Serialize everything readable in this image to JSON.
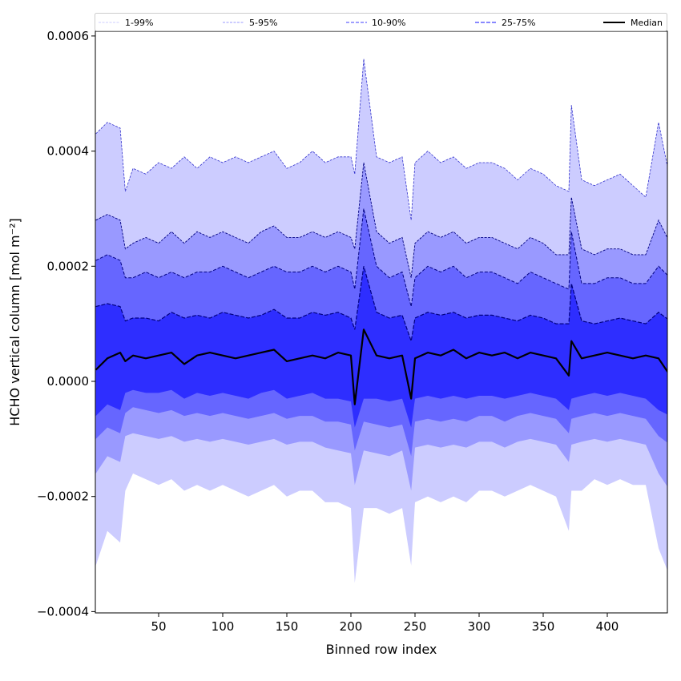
{
  "chart_data": {
    "type": "area",
    "title": "",
    "xlabel": "Binned row index",
    "ylabel": "HCHO vertical column [mol m⁻²]",
    "value_scale": 0.0001,
    "xlim": [
      1,
      449
    ],
    "ylim": [
      -0.0004,
      0.00061
    ],
    "xticks": [
      50,
      100,
      150,
      200,
      250,
      300,
      350,
      400
    ],
    "xtick_labels": [
      "50",
      "100",
      "150",
      "200",
      "250",
      "300",
      "350",
      "400"
    ],
    "yticks": [
      0.0006,
      0.0004,
      0.0002,
      0.0,
      -0.0002,
      -0.0004
    ],
    "ytick_labels": [
      "0.0006",
      "0.0004",
      "0.0002",
      "0.0000",
      "−0.0002",
      "−0.0004"
    ],
    "grid": false,
    "legend_placement": "top, above plot, 5 columns",
    "legend": [
      "1-99%",
      "5-95%",
      "10-90%",
      "25-75%",
      "Median"
    ],
    "colors": {
      "band_1_99": "#ccccff",
      "band_5_95": "#9999ff",
      "band_10_90": "#6666ff",
      "band_25_75": "#2e2eff",
      "median": "#000000",
      "edge_line": "#000080"
    },
    "x": [
      1,
      10,
      20,
      24,
      30,
      40,
      50,
      60,
      70,
      80,
      90,
      100,
      110,
      120,
      130,
      140,
      150,
      160,
      170,
      180,
      190,
      200,
      203,
      210,
      220,
      230,
      240,
      247,
      250,
      260,
      270,
      280,
      290,
      300,
      310,
      320,
      330,
      340,
      350,
      360,
      370,
      372,
      380,
      390,
      400,
      410,
      420,
      430,
      440,
      449
    ],
    "series": [
      {
        "name": "p99",
        "values": [
          4.3,
          4.5,
          4.4,
          3.3,
          3.7,
          3.6,
          3.8,
          3.7,
          3.9,
          3.7,
          3.9,
          3.8,
          3.9,
          3.8,
          3.9,
          4.0,
          3.7,
          3.8,
          4.0,
          3.8,
          3.9,
          3.9,
          3.6,
          5.6,
          3.9,
          3.8,
          3.9,
          2.8,
          3.8,
          4.0,
          3.8,
          3.9,
          3.7,
          3.8,
          3.8,
          3.7,
          3.5,
          3.7,
          3.6,
          3.4,
          3.3,
          4.8,
          3.5,
          3.4,
          3.5,
          3.6,
          3.4,
          3.2,
          4.5,
          3.5
        ]
      },
      {
        "name": "p95",
        "values": [
          2.8,
          2.9,
          2.8,
          2.3,
          2.4,
          2.5,
          2.4,
          2.6,
          2.4,
          2.6,
          2.5,
          2.6,
          2.5,
          2.4,
          2.6,
          2.7,
          2.5,
          2.5,
          2.6,
          2.5,
          2.6,
          2.5,
          2.3,
          3.8,
          2.6,
          2.4,
          2.5,
          1.8,
          2.4,
          2.6,
          2.5,
          2.6,
          2.4,
          2.5,
          2.5,
          2.4,
          2.3,
          2.5,
          2.4,
          2.2,
          2.2,
          3.2,
          2.3,
          2.2,
          2.3,
          2.3,
          2.2,
          2.2,
          2.8,
          2.4
        ]
      },
      {
        "name": "p90",
        "values": [
          2.1,
          2.2,
          2.1,
          1.8,
          1.8,
          1.9,
          1.8,
          1.9,
          1.8,
          1.9,
          1.9,
          2.0,
          1.9,
          1.8,
          1.9,
          2.0,
          1.9,
          1.9,
          2.0,
          1.9,
          2.0,
          1.9,
          1.6,
          3.0,
          2.0,
          1.8,
          1.9,
          1.3,
          1.8,
          2.0,
          1.9,
          2.0,
          1.8,
          1.9,
          1.9,
          1.8,
          1.7,
          1.9,
          1.8,
          1.7,
          1.6,
          2.6,
          1.7,
          1.7,
          1.8,
          1.8,
          1.7,
          1.7,
          2.0,
          1.8
        ]
      },
      {
        "name": "p75",
        "values": [
          1.3,
          1.35,
          1.3,
          1.05,
          1.1,
          1.1,
          1.05,
          1.2,
          1.1,
          1.15,
          1.1,
          1.2,
          1.15,
          1.1,
          1.15,
          1.25,
          1.1,
          1.1,
          1.2,
          1.15,
          1.2,
          1.1,
          0.9,
          2.0,
          1.2,
          1.1,
          1.15,
          0.7,
          1.1,
          1.2,
          1.15,
          1.2,
          1.1,
          1.15,
          1.15,
          1.1,
          1.05,
          1.15,
          1.1,
          1.0,
          1.0,
          1.7,
          1.05,
          1.0,
          1.05,
          1.1,
          1.05,
          1.0,
          1.2,
          1.05
        ]
      },
      {
        "name": "Median",
        "values": [
          0.2,
          0.4,
          0.5,
          0.35,
          0.45,
          0.4,
          0.45,
          0.5,
          0.3,
          0.45,
          0.5,
          0.45,
          0.4,
          0.45,
          0.5,
          0.55,
          0.35,
          0.4,
          0.45,
          0.4,
          0.5,
          0.45,
          -0.4,
          0.9,
          0.45,
          0.4,
          0.45,
          -0.3,
          0.4,
          0.5,
          0.45,
          0.55,
          0.4,
          0.5,
          0.45,
          0.5,
          0.4,
          0.5,
          0.45,
          0.4,
          0.1,
          0.7,
          0.4,
          0.45,
          0.5,
          0.45,
          0.4,
          0.45,
          0.4,
          0.1
        ]
      },
      {
        "name": "p25",
        "values": [
          -0.6,
          -0.4,
          -0.5,
          -0.2,
          -0.15,
          -0.2,
          -0.2,
          -0.15,
          -0.3,
          -0.2,
          -0.25,
          -0.2,
          -0.25,
          -0.3,
          -0.2,
          -0.15,
          -0.3,
          -0.25,
          -0.2,
          -0.3,
          -0.3,
          -0.35,
          -0.8,
          -0.3,
          -0.3,
          -0.35,
          -0.3,
          -0.8,
          -0.3,
          -0.25,
          -0.3,
          -0.25,
          -0.3,
          -0.25,
          -0.25,
          -0.3,
          -0.25,
          -0.2,
          -0.25,
          -0.3,
          -0.5,
          -0.3,
          -0.25,
          -0.2,
          -0.25,
          -0.2,
          -0.25,
          -0.3,
          -0.5,
          -0.6
        ]
      },
      {
        "name": "p10",
        "values": [
          -1.0,
          -0.8,
          -0.9,
          -0.55,
          -0.45,
          -0.5,
          -0.55,
          -0.5,
          -0.6,
          -0.55,
          -0.6,
          -0.55,
          -0.6,
          -0.65,
          -0.6,
          -0.55,
          -0.65,
          -0.6,
          -0.6,
          -0.7,
          -0.7,
          -0.75,
          -1.2,
          -0.7,
          -0.75,
          -0.8,
          -0.75,
          -1.3,
          -0.7,
          -0.65,
          -0.7,
          -0.65,
          -0.7,
          -0.6,
          -0.6,
          -0.7,
          -0.6,
          -0.55,
          -0.6,
          -0.65,
          -0.9,
          -0.65,
          -0.6,
          -0.55,
          -0.6,
          -0.55,
          -0.6,
          -0.65,
          -0.95,
          -1.1
        ]
      },
      {
        "name": "p5",
        "values": [
          -1.6,
          -1.3,
          -1.4,
          -0.95,
          -0.9,
          -0.95,
          -1.0,
          -0.95,
          -1.05,
          -1.0,
          -1.05,
          -1.0,
          -1.05,
          -1.1,
          -1.05,
          -1.0,
          -1.1,
          -1.05,
          -1.05,
          -1.15,
          -1.2,
          -1.25,
          -1.8,
          -1.2,
          -1.25,
          -1.3,
          -1.2,
          -1.9,
          -1.15,
          -1.1,
          -1.15,
          -1.1,
          -1.15,
          -1.05,
          -1.05,
          -1.15,
          -1.05,
          -1.0,
          -1.05,
          -1.1,
          -1.4,
          -1.1,
          -1.05,
          -1.0,
          -1.05,
          -1.0,
          -1.05,
          -1.1,
          -1.6,
          -1.9
        ]
      },
      {
        "name": "p1",
        "values": [
          -3.2,
          -2.6,
          -2.8,
          -1.9,
          -1.6,
          -1.7,
          -1.8,
          -1.7,
          -1.9,
          -1.8,
          -1.9,
          -1.8,
          -1.9,
          -2.0,
          -1.9,
          -1.8,
          -2.0,
          -1.9,
          -1.9,
          -2.1,
          -2.1,
          -2.2,
          -3.5,
          -2.2,
          -2.2,
          -2.3,
          -2.2,
          -3.2,
          -2.1,
          -2.0,
          -2.1,
          -2.0,
          -2.1,
          -1.9,
          -1.9,
          -2.0,
          -1.9,
          -1.8,
          -1.9,
          -2.0,
          -2.6,
          -1.9,
          -1.9,
          -1.7,
          -1.8,
          -1.7,
          -1.8,
          -1.8,
          -2.9,
          -3.4
        ]
      }
    ]
  }
}
